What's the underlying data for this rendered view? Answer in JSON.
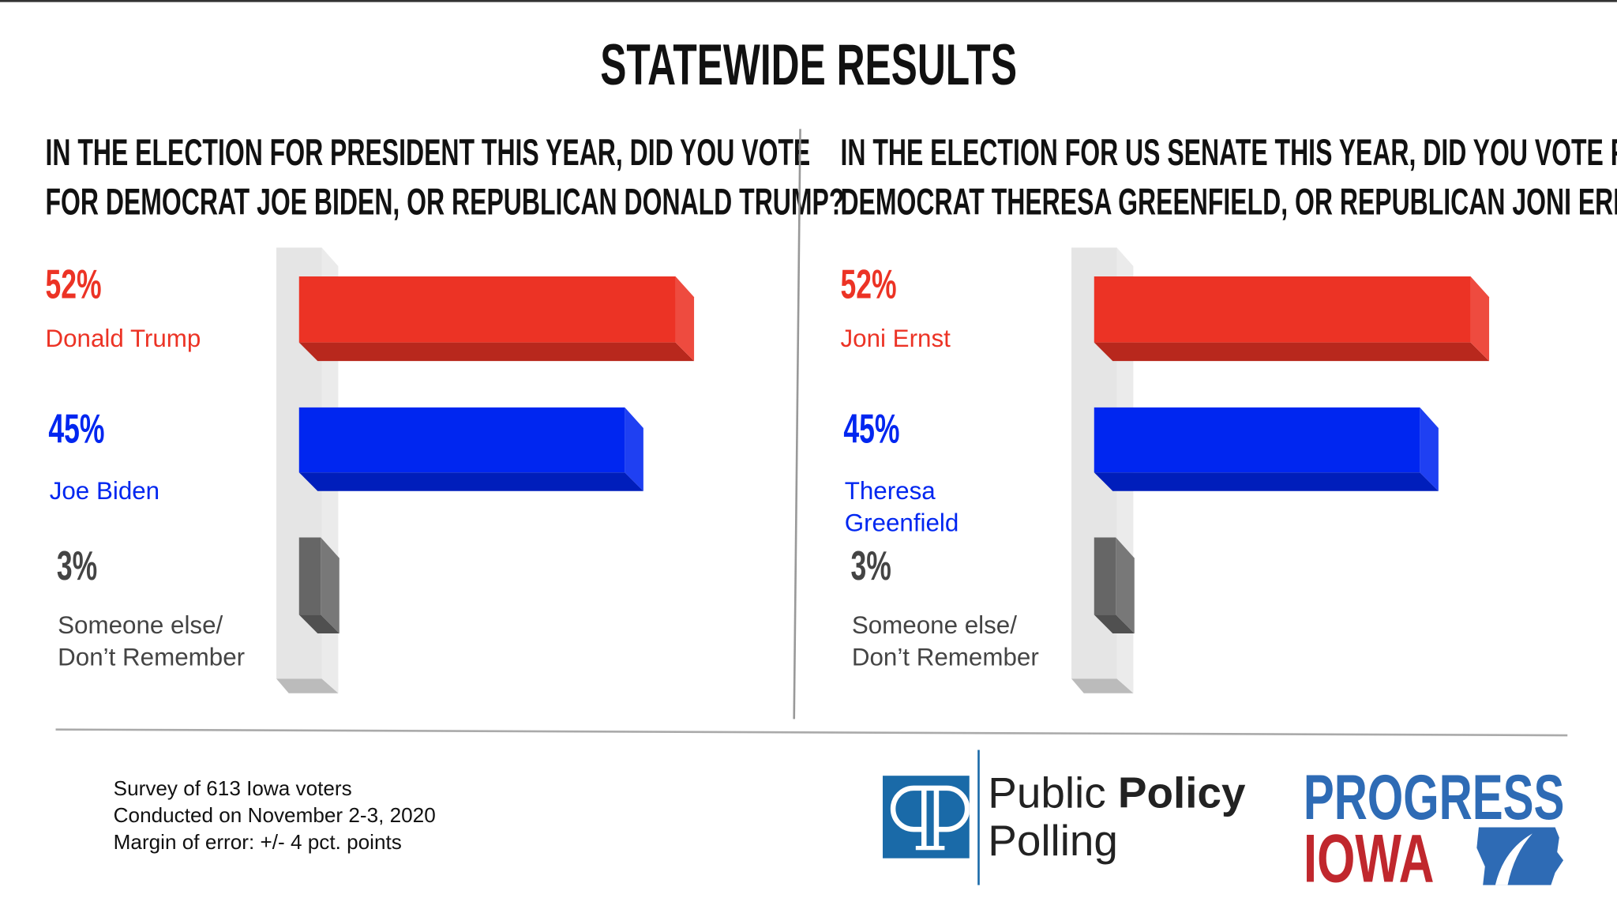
{
  "title": "STATEWIDE RESULTS",
  "colors": {
    "red": "#ec3325",
    "blue": "#0026f0",
    "gray": "#666666"
  },
  "chart_data": [
    {
      "type": "bar",
      "orientation": "horizontal",
      "title": [
        "IN THE ELECTION FOR PRESIDENT THIS YEAR, DID YOU VOTE",
        "FOR DEMOCRAT JOE BIDEN, OR REPUBLICAN DONALD TRUMP?"
      ],
      "categories": [
        "Donald Trump",
        "Joe Biden",
        "Someone else/ Don’t Remember"
      ],
      "label_lines": [
        [
          "Donald Trump"
        ],
        [
          "Joe Biden"
        ],
        [
          "Someone else/",
          "Don’t Remember"
        ]
      ],
      "values": [
        52,
        45,
        3
      ],
      "data_labels": [
        "52%",
        "45%",
        "3%"
      ],
      "colors": [
        "#ec3325",
        "#0026f0",
        "#666666"
      ]
    },
    {
      "type": "bar",
      "orientation": "horizontal",
      "title": [
        "IN THE ELECTION FOR US SENATE THIS YEAR, DID YOU VOTE FOR",
        "DEMOCRAT THERESA GREENFIELD, OR REPUBLICAN JONI ERNST?"
      ],
      "categories": [
        "Joni Ernst",
        "Theresa Greenfield",
        "Someone else/ Don’t Remember"
      ],
      "label_lines": [
        [
          "Joni Ernst"
        ],
        [
          "Theresa",
          "Greenfield"
        ],
        [
          "Someone else/",
          "Don’t Remember"
        ]
      ],
      "values": [
        52,
        45,
        3
      ],
      "data_labels": [
        "52%",
        "45%",
        "3%"
      ],
      "colors": [
        "#ec3325",
        "#0026f0",
        "#666666"
      ]
    }
  ],
  "footer": {
    "lines": [
      "Survey of 613 Iowa voters",
      "Conducted on November 2-3, 2020",
      "Margin of error: +/- 4 pct. points"
    ]
  },
  "logos": {
    "ppp": {
      "line1_regular": "Public ",
      "line1_bold": "Policy",
      "line2": "Polling",
      "color": "#1a6aa8"
    },
    "progress_iowa": {
      "line1": "PROGRESS",
      "line2": "IOWA",
      "blue": "#2e6bb5",
      "red": "#c0272d"
    }
  }
}
